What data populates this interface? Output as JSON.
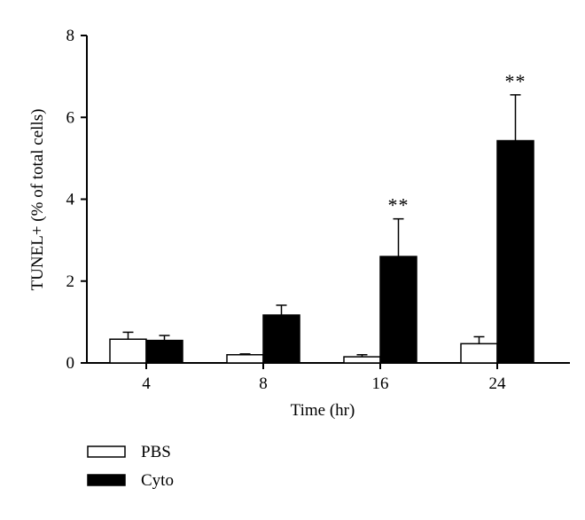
{
  "chart_data": {
    "type": "bar",
    "xlabel": "Time (hr)",
    "ylabel": "TUNEL+ (% of total cells)",
    "ylim": [
      0,
      8
    ],
    "yticks": [
      "0",
      "2",
      "4",
      "6",
      "8"
    ],
    "categories": [
      "4",
      "8",
      "16",
      "24"
    ],
    "series": [
      {
        "name": "PBS",
        "fill": "#ffffff",
        "values": [
          0.58,
          0.2,
          0.15,
          0.47
        ],
        "errors": [
          0.17,
          0.02,
          0.05,
          0.17
        ],
        "annotations": [
          "",
          "",
          "",
          ""
        ]
      },
      {
        "name": "Cyto",
        "fill": "#000000",
        "values": [
          0.55,
          1.17,
          2.6,
          5.43
        ],
        "errors": [
          0.12,
          0.24,
          0.92,
          1.12
        ],
        "annotations": [
          "",
          "",
          "**",
          "**"
        ]
      }
    ],
    "grid": false,
    "legend_position": "bottom-left"
  }
}
